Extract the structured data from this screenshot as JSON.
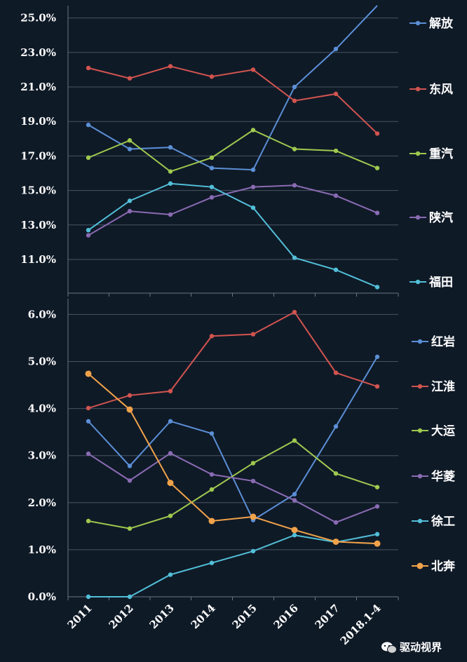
{
  "chart_data": [
    {
      "type": "line",
      "categories": [
        "2011",
        "2012",
        "2013",
        "2014",
        "2015",
        "2016",
        "2017",
        "2018.1-4"
      ],
      "yticks": [
        "25.0%",
        "23.0%",
        "21.0%",
        "19.0%",
        "17.0%",
        "15.0%",
        "13.0%",
        "11.0%"
      ],
      "ylim": [
        9.0,
        26.0
      ],
      "legend_position": "right",
      "series": [
        {
          "name": "解放",
          "color": "#5b8fd6",
          "values": [
            18.8,
            17.4,
            17.5,
            16.3,
            16.2,
            21.0,
            23.2,
            26.0
          ]
        },
        {
          "name": "东风",
          "color": "#d2544f",
          "values": [
            22.1,
            21.5,
            22.2,
            21.6,
            22.0,
            20.2,
            20.6,
            18.3
          ]
        },
        {
          "name": "重汽",
          "color": "#9fc94e",
          "values": [
            16.9,
            17.9,
            16.1,
            16.9,
            18.5,
            17.4,
            17.3,
            16.3
          ]
        },
        {
          "name": "陕汽",
          "color": "#8a6bb3",
          "values": [
            12.4,
            13.8,
            13.6,
            14.6,
            15.2,
            15.3,
            14.7,
            13.7
          ]
        },
        {
          "name": "福田",
          "color": "#52bfd8",
          "values": [
            12.7,
            14.4,
            15.4,
            15.2,
            14.0,
            11.1,
            10.4,
            9.4
          ]
        }
      ]
    },
    {
      "type": "line",
      "categories": [
        "2011",
        "2012",
        "2013",
        "2014",
        "2015",
        "2016",
        "2017",
        "2018.1-4"
      ],
      "yticks": [
        "6.0%",
        "5.0%",
        "4.0%",
        "3.0%",
        "2.0%",
        "1.0%",
        "0.0%"
      ],
      "ylim": [
        0.0,
        6.0
      ],
      "legend_position": "right",
      "series": [
        {
          "name": "红岩",
          "color": "#5b8fd6",
          "values": [
            3.73,
            2.78,
            3.73,
            3.47,
            1.63,
            2.18,
            3.62,
            5.1
          ]
        },
        {
          "name": "江淮",
          "color": "#d2544f",
          "values": [
            4.01,
            4.28,
            4.37,
            5.54,
            5.58,
            6.05,
            4.76,
            4.47
          ]
        },
        {
          "name": "大运",
          "color": "#9fc94e",
          "values": [
            1.61,
            1.45,
            1.72,
            2.28,
            2.84,
            3.32,
            2.62,
            2.33
          ]
        },
        {
          "name": "华菱",
          "color": "#8a6bb3",
          "values": [
            3.04,
            2.47,
            3.05,
            2.6,
            2.46,
            2.05,
            1.58,
            1.92
          ]
        },
        {
          "name": "徐工",
          "color": "#52bfd8",
          "values": [
            0.0,
            0.0,
            0.47,
            0.72,
            0.97,
            1.31,
            1.16,
            1.33
          ]
        },
        {
          "name": "北奔",
          "color": "#f0a24a",
          "values": [
            4.74,
            3.98,
            2.42,
            1.61,
            1.7,
            1.42,
            1.17,
            1.13
          ]
        }
      ]
    }
  ],
  "watermark": {
    "text": "驱动视界",
    "icon": "wechat-icon"
  }
}
